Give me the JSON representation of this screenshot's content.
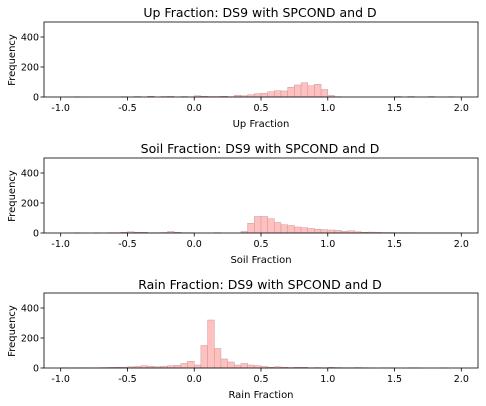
{
  "chart_data": [
    {
      "type": "bar",
      "title": "Up Fraction: DS9 with SPCOND and D",
      "xlabel": "Up Fraction",
      "ylabel": "Frequency",
      "xlim": [
        -1.125,
        2.125
      ],
      "ylim": [
        0,
        500
      ],
      "xticks": [
        "-1.0",
        "-0.5",
        "0.0",
        "0.5",
        "1.0",
        "1.5",
        "2.0"
      ],
      "yticks": [
        "0",
        "200",
        "400"
      ],
      "bin_start": -1.0,
      "bin_width": 0.05,
      "values": [
        0,
        0,
        1,
        0,
        0,
        0,
        0,
        0,
        0,
        2,
        0,
        3,
        0,
        5,
        0,
        3,
        4,
        0,
        3,
        0,
        8,
        5,
        3,
        3,
        5,
        2,
        12,
        8,
        15,
        22,
        25,
        35,
        42,
        40,
        65,
        80,
        95,
        75,
        85,
        50,
        10,
        2,
        0,
        0,
        0,
        0,
        0,
        0,
        0,
        0,
        3,
        0,
        3,
        0,
        0,
        3,
        0,
        0,
        2,
        0
      ]
    },
    {
      "type": "bar",
      "title": "Soil Fraction: DS9 with SPCOND and D",
      "xlabel": "Soil Fraction",
      "ylabel": "Frequency",
      "xlim": [
        -1.125,
        2.125
      ],
      "ylim": [
        0,
        500
      ],
      "xticks": [
        "-1.0",
        "-0.5",
        "0.0",
        "0.5",
        "1.0",
        "1.5",
        "2.0"
      ],
      "yticks": [
        "0",
        "200",
        "400"
      ],
      "bin_start": -1.0,
      "bin_width": 0.05,
      "values": [
        0,
        0,
        1,
        0,
        0,
        1,
        0,
        2,
        2,
        5,
        8,
        5,
        5,
        2,
        2,
        3,
        10,
        5,
        2,
        2,
        0,
        0,
        0,
        2,
        0,
        0,
        0,
        10,
        65,
        110,
        110,
        95,
        70,
        55,
        50,
        40,
        35,
        30,
        25,
        22,
        20,
        18,
        12,
        15,
        8,
        5,
        6,
        4,
        3,
        3,
        2,
        2,
        2,
        1,
        1,
        1,
        1,
        1,
        1,
        1
      ]
    },
    {
      "type": "bar",
      "title": "Rain Fraction: DS9 with SPCOND and D",
      "xlabel": "Rain Fraction",
      "ylabel": "Frequency",
      "xlim": [
        -1.125,
        2.125
      ],
      "ylim": [
        0,
        500
      ],
      "xticks": [
        "-1.0",
        "-0.5",
        "0.0",
        "0.5",
        "1.0",
        "1.5",
        "2.0"
      ],
      "yticks": [
        "0",
        "200",
        "400"
      ],
      "bin_start": -1.0,
      "bin_width": 0.05,
      "values": [
        2,
        1,
        2,
        2,
        1,
        2,
        3,
        4,
        5,
        5,
        8,
        10,
        15,
        12,
        8,
        12,
        15,
        18,
        30,
        45,
        20,
        150,
        320,
        130,
        60,
        40,
        20,
        30,
        20,
        15,
        10,
        5,
        8,
        5,
        3,
        5,
        5,
        2,
        3,
        2,
        5,
        3,
        2,
        2,
        3,
        2,
        1,
        0,
        1,
        1,
        0,
        0,
        2,
        1,
        0,
        0,
        0,
        1,
        0,
        0
      ]
    }
  ]
}
